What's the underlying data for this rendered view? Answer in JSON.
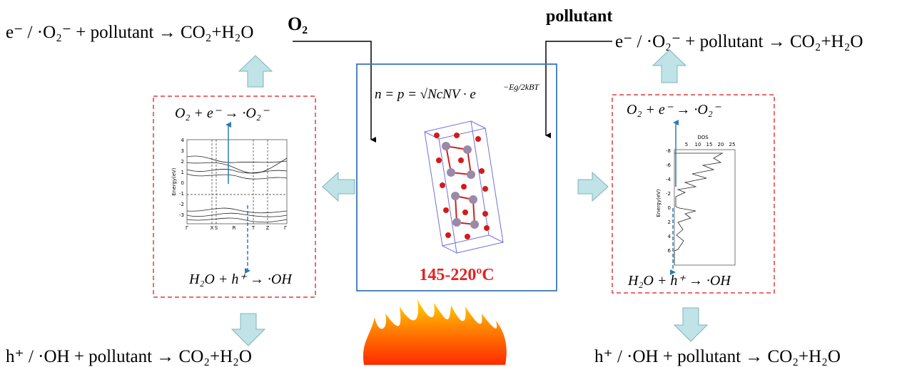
{
  "top_left": {
    "equation": "e⁻ / ·O₂⁻ + pollutant → CO₂+H₂O"
  },
  "top_right": {
    "equation": "e⁻ / ·O₂⁻ + pollutant → CO₂+H₂O"
  },
  "inputs": {
    "oxygen": "O₂",
    "pollutant": "pollutant"
  },
  "left_box": {
    "reduction": "O₂ + e⁻ → ·O₂⁻",
    "oxidation": "H₂O + h⁺ → ·OH",
    "band_plot": {
      "y_label": "Energy(eV)",
      "y_ticks": [
        4,
        3,
        2,
        1,
        0,
        -1,
        -2,
        -3
      ],
      "x_ticks": [
        "Γ",
        "X",
        "S",
        "R",
        "T",
        "Z",
        "Γ"
      ]
    }
  },
  "right_box": {
    "reduction": "O₂ + e⁻ → ·O₂⁻",
    "oxidation": "H₂O + h⁺ → ·OH",
    "dos_plot": {
      "x_label": "DOS",
      "x_ticks": [
        5,
        10,
        15,
        20,
        25
      ],
      "y_label": "Energy(eV)",
      "y_ticks": [
        -8,
        -6,
        -4,
        -2,
        0,
        2,
        4,
        6
      ]
    }
  },
  "center": {
    "formula": "n = p = √NcNV · e",
    "formula_exponent": "−Eg/2kBT",
    "temperature": "145-220ºC"
  },
  "bottom_left": {
    "equation": "h⁺ / ·OH + pollutant → CO₂+H₂O"
  },
  "bottom_right": {
    "equation": "h⁺ / ·OH + pollutant → CO₂+H₂O"
  }
}
